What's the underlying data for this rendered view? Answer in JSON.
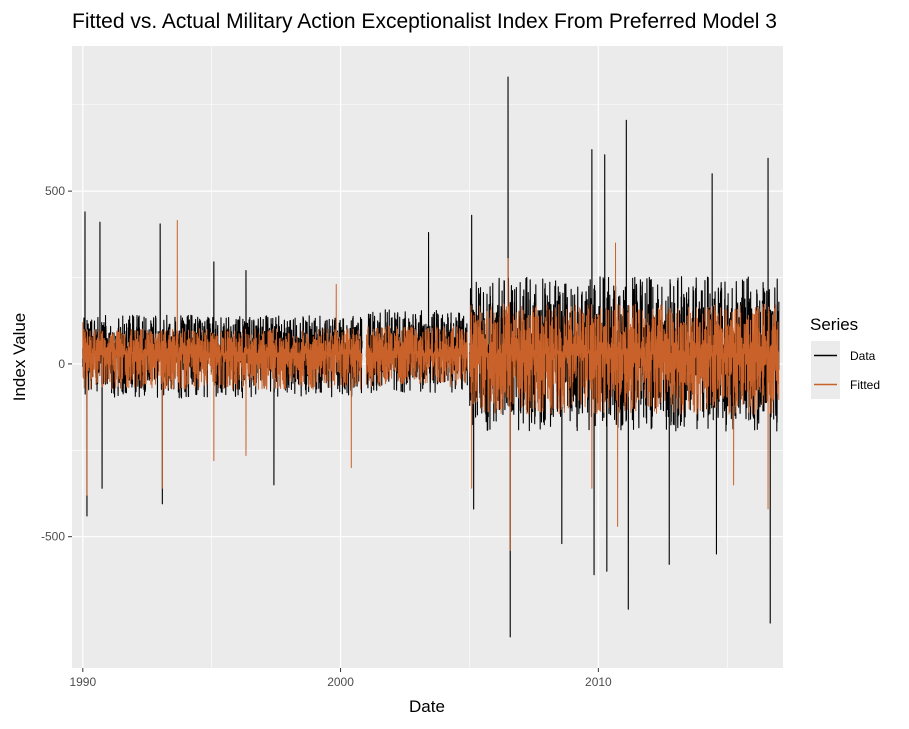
{
  "chart_data": {
    "type": "line",
    "title": "Fitted vs. Actual Military Action Exceptionalist Index From Preferred Model 3",
    "xlabel": "Date",
    "ylabel": "Index Value",
    "x_range": [
      "1989-08-01",
      "2017-03-01"
    ],
    "xticks": [
      {
        "date": "1990-01-01",
        "label": "1990"
      },
      {
        "date": "2000-01-01",
        "label": "2000"
      },
      {
        "date": "2010-01-01",
        "label": "2010"
      }
    ],
    "xticks_minor": [
      "1995-01-01",
      "2005-01-01",
      "2015-01-01"
    ],
    "ylim": [
      -880,
      920
    ],
    "yticks": [
      {
        "value": -500,
        "label": "-500"
      },
      {
        "value": 0,
        "label": "0"
      },
      {
        "value": 500,
        "label": "500"
      }
    ],
    "yticks_minor": [
      -250,
      250,
      750
    ],
    "grid": true,
    "legend": {
      "title": "Series",
      "position": "right",
      "entries": [
        {
          "name": "Data",
          "color": "#000000"
        },
        {
          "name": "Fitted",
          "color": "#c9622a"
        }
      ]
    },
    "series": [
      {
        "name": "Data",
        "color": "#000000",
        "baseline": 45,
        "noise_amplitude_by_period": [
          {
            "start": "1990-01-01",
            "end": "2000-11-01",
            "pos": 60,
            "neg": 90
          },
          {
            "start": "2001-01-01",
            "end": "2004-12-01",
            "pos": 70,
            "neg": 80
          },
          {
            "start": "2005-01-01",
            "end": "2017-01-01",
            "pos": 130,
            "neg": 150
          }
        ],
        "points": [
          {
            "date": "1990-02-01",
            "value": 440
          },
          {
            "date": "1990-03-01",
            "value": -440
          },
          {
            "date": "1990-09-01",
            "value": 410
          },
          {
            "date": "1990-10-01",
            "value": -360
          },
          {
            "date": "1993-01-01",
            "value": 405
          },
          {
            "date": "1993-02-01",
            "value": -405
          },
          {
            "date": "1995-02-01",
            "value": 295
          },
          {
            "date": "1996-05-01",
            "value": 270
          },
          {
            "date": "1997-06-01",
            "value": -350
          },
          {
            "date": "2001-01-01",
            "value": 20
          },
          {
            "date": "2001-06-01",
            "value": -55
          },
          {
            "date": "2003-06-01",
            "value": 380
          },
          {
            "date": "2005-02-01",
            "value": 430
          },
          {
            "date": "2005-03-01",
            "value": -420
          },
          {
            "date": "2006-07-01",
            "value": 830
          },
          {
            "date": "2006-08-01",
            "value": -790
          },
          {
            "date": "2008-08-01",
            "value": -520
          },
          {
            "date": "2009-10-01",
            "value": 620
          },
          {
            "date": "2009-11-01",
            "value": -610
          },
          {
            "date": "2010-04-01",
            "value": 605
          },
          {
            "date": "2010-05-01",
            "value": -600
          },
          {
            "date": "2011-02-01",
            "value": 705
          },
          {
            "date": "2011-03-01",
            "value": -710
          },
          {
            "date": "2012-10-01",
            "value": -580
          },
          {
            "date": "2014-06-01",
            "value": 550
          },
          {
            "date": "2014-08-01",
            "value": -550
          },
          {
            "date": "2016-08-01",
            "value": 595
          },
          {
            "date": "2016-09-01",
            "value": -750
          },
          {
            "date": "2017-01-01",
            "value": 180
          }
        ]
      },
      {
        "name": "Fitted",
        "color": "#c9622a",
        "baseline": 30,
        "noise_amplitude_by_period": [
          {
            "start": "1990-01-01",
            "end": "2000-11-01",
            "pos": 45,
            "neg": 65
          },
          {
            "start": "2001-01-01",
            "end": "2004-12-01",
            "pos": 50,
            "neg": 60
          },
          {
            "start": "2005-01-01",
            "end": "2017-01-01",
            "pos": 90,
            "neg": 110
          }
        ],
        "points": [
          {
            "date": "1990-01-01",
            "value": 120
          },
          {
            "date": "1990-03-01",
            "value": -380
          },
          {
            "date": "1993-02-01",
            "value": -360
          },
          {
            "date": "1993-09-01",
            "value": 415
          },
          {
            "date": "1995-02-01",
            "value": -280
          },
          {
            "date": "1996-05-01",
            "value": -265
          },
          {
            "date": "1999-11-01",
            "value": 230
          },
          {
            "date": "2000-06-01",
            "value": -300
          },
          {
            "date": "2005-02-01",
            "value": -360
          },
          {
            "date": "2006-07-01",
            "value": 305
          },
          {
            "date": "2006-08-01",
            "value": -540
          },
          {
            "date": "2009-10-01",
            "value": -360
          },
          {
            "date": "2010-09-01",
            "value": 350
          },
          {
            "date": "2010-10-01",
            "value": -470
          },
          {
            "date": "2015-04-01",
            "value": -350
          },
          {
            "date": "2016-08-01",
            "value": -420
          }
        ]
      }
    ]
  }
}
